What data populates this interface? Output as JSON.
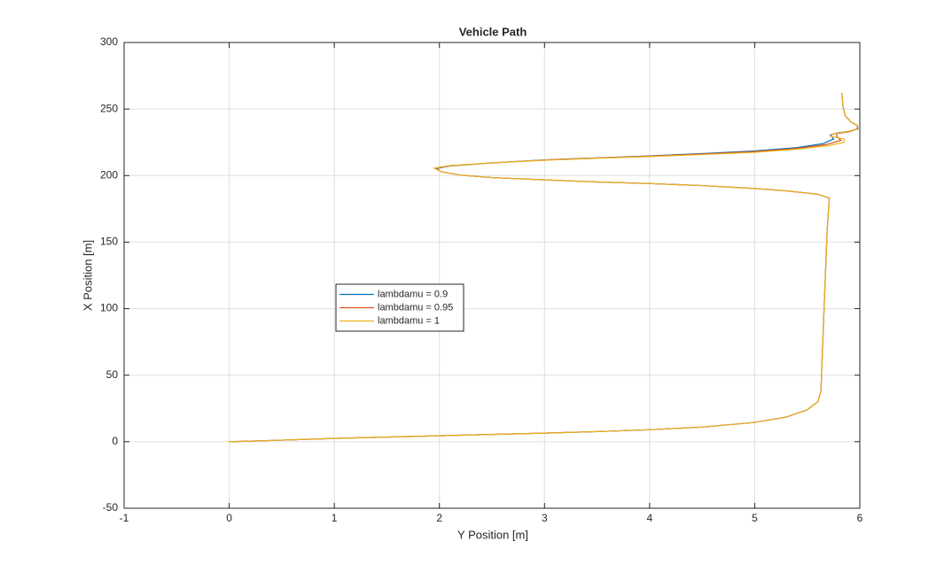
{
  "chart_data": {
    "type": "line",
    "title": "Vehicle Path",
    "xlabel": "Y Position [m]",
    "ylabel": "X Position [m]",
    "xlim": [
      -1,
      6
    ],
    "xticks": [
      -1,
      0,
      1,
      2,
      3,
      4,
      5,
      6
    ],
    "ylim": [
      -50,
      300
    ],
    "yticks": [
      -50,
      0,
      50,
      100,
      150,
      200,
      250,
      300
    ],
    "grid": true,
    "legend": "west",
    "series": [
      {
        "name": "lambdamu = 0.9",
        "color": "#0072BD",
        "x": [
          0,
          0.5,
          1,
          1.5,
          2,
          2.5,
          3,
          3.5,
          4,
          4.5,
          5,
          5.3,
          5.5,
          5.6,
          5.63,
          5.65,
          5.67,
          5.69,
          5.71,
          5.6,
          5.3,
          5,
          4.5,
          4,
          3.5,
          3,
          2.5,
          2.2,
          2.02,
          1.97,
          2.1,
          2.5,
          3,
          3.5,
          4,
          4.5,
          5,
          5.4,
          5.65,
          5.75,
          5.72,
          5.78,
          5.9,
          5.98,
          5.98,
          5.92,
          5.86,
          5.84,
          5.83
        ],
        "values": [
          0,
          1.2,
          2.5,
          3.5,
          4.5,
          5.5,
          6.5,
          7.6,
          9,
          11,
          14.5,
          18.5,
          24,
          30,
          38,
          80,
          120,
          160,
          183,
          186,
          188.5,
          190.3,
          192.5,
          194,
          195.2,
          196.8,
          198.5,
          200.3,
          202.8,
          205.2,
          207.2,
          209.5,
          211.8,
          213.3,
          214.8,
          216.5,
          218.5,
          221,
          224,
          227.5,
          230.5,
          232,
          233.3,
          235,
          237.5,
          240,
          245,
          252,
          262
        ]
      },
      {
        "name": "lambdamu = 0.95",
        "color": "#D95319",
        "x": [
          0,
          0.5,
          1,
          1.5,
          2,
          2.5,
          3,
          3.5,
          4,
          4.5,
          5,
          5.3,
          5.5,
          5.6,
          5.63,
          5.65,
          5.67,
          5.69,
          5.71,
          5.6,
          5.3,
          5,
          4.5,
          4,
          3.5,
          3,
          2.5,
          2.2,
          2.02,
          1.96,
          2.1,
          2.5,
          3,
          3.5,
          4,
          4.5,
          5,
          5.4,
          5.68,
          5.82,
          5.78,
          5.78,
          5.9,
          5.97,
          5.98,
          5.92,
          5.86,
          5.84,
          5.83
        ],
        "values": [
          0,
          1.2,
          2.5,
          3.5,
          4.5,
          5.5,
          6.5,
          7.6,
          9,
          11,
          14.5,
          18.5,
          24,
          30,
          38,
          80,
          120,
          160,
          183,
          186,
          188.5,
          190.3,
          192.5,
          194,
          195.2,
          196.8,
          198.5,
          200.3,
          202.8,
          205.4,
          207.3,
          209.5,
          211.7,
          213.2,
          214.6,
          216.2,
          218,
          220.4,
          223.3,
          226.5,
          229.5,
          231.5,
          233,
          235,
          237.5,
          240,
          245,
          252,
          262
        ]
      },
      {
        "name": "lambdamu = 1",
        "color": "#EDB120",
        "x": [
          0,
          0.5,
          1,
          1.5,
          2,
          2.5,
          3,
          3.5,
          4,
          4.5,
          5,
          5.3,
          5.5,
          5.6,
          5.63,
          5.65,
          5.67,
          5.69,
          5.71,
          5.6,
          5.3,
          5,
          4.5,
          4,
          3.5,
          3,
          2.5,
          2.2,
          2.02,
          1.95,
          2.1,
          2.5,
          3,
          3.5,
          4,
          4.5,
          5,
          5.4,
          5.7,
          5.85,
          5.85,
          5.72,
          5.75,
          5.88,
          5.97,
          5.98,
          5.92,
          5.86,
          5.84,
          5.83
        ],
        "values": [
          0,
          1.2,
          2.5,
          3.5,
          4.5,
          5.5,
          6.5,
          7.6,
          9,
          11,
          14.5,
          18.5,
          24,
          30,
          38,
          80,
          120,
          160,
          183,
          186,
          188.5,
          190.3,
          192.5,
          194,
          195.2,
          196.8,
          198.5,
          200.3,
          202.8,
          205.6,
          207.5,
          209.5,
          211.5,
          213,
          214.3,
          215.8,
          217.5,
          219.8,
          222.5,
          225,
          227.5,
          229.5,
          231.5,
          233,
          235,
          237.5,
          240,
          245,
          252,
          262
        ]
      }
    ]
  }
}
